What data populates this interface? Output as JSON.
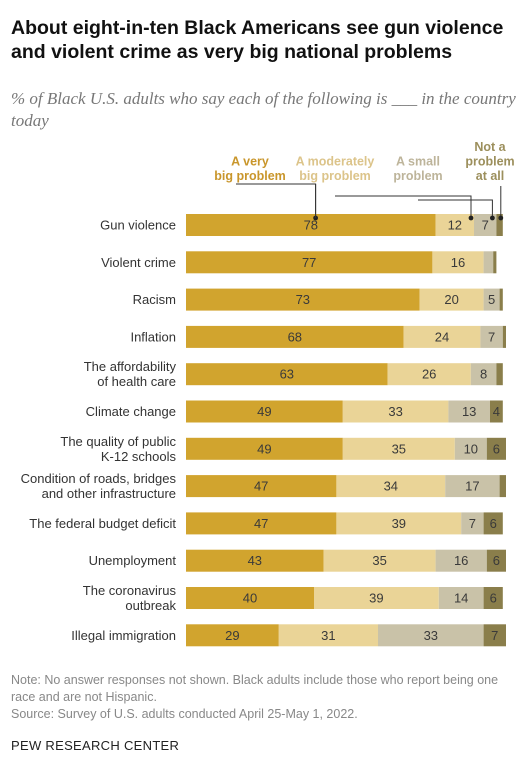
{
  "title": "About eight-in-ten Black Americans see gun violence and violent crime as very big national problems",
  "subtitle": "% of Black U.S. adults who say each of the following is ___ in the country today",
  "note": "Note: No answer responses not shown. Black adults include those who report being one race and are not Hispanic.",
  "source": "Source: Survey of U.S. adults conducted April 25-May 1, 2022.",
  "org": "PEW RESEARCH CENTER",
  "colors": {
    "very_big": "#d1a42e",
    "moderately_big": "#ead497",
    "small": "#c9c2a8",
    "not_a_problem": "#8a7e4b",
    "very_big_label": "#c9962b",
    "moderately_big_label": "#dcc48a",
    "small_label": "#bdb49a",
    "not_a_problem_label": "#9c8f5c"
  },
  "chart_data": {
    "type": "bar",
    "orientation": "horizontal",
    "stacked": true,
    "xlim": [
      0,
      100
    ],
    "categories": [
      [
        "Gun violence"
      ],
      [
        "Violent crime"
      ],
      [
        "Racism"
      ],
      [
        "Inflation"
      ],
      [
        "The affordability",
        "of health care"
      ],
      [
        "Climate change"
      ],
      [
        "The quality of public",
        "K-12 schools"
      ],
      [
        "Condition of roads, bridges",
        "and other infrastructure"
      ],
      [
        "The federal budget deficit"
      ],
      [
        "Unemployment"
      ],
      [
        "The coronavirus",
        "outbreak"
      ],
      [
        "Illegal immigration"
      ]
    ],
    "series": [
      {
        "name": [
          "A very",
          "big problem"
        ],
        "key": "very_big",
        "values": [
          78,
          77,
          73,
          68,
          63,
          49,
          49,
          47,
          47,
          43,
          40,
          29
        ]
      },
      {
        "name": [
          "A moderately",
          "big problem"
        ],
        "key": "moderately_big",
        "values": [
          12,
          16,
          20,
          24,
          26,
          33,
          35,
          34,
          39,
          35,
          39,
          31
        ]
      },
      {
        "name": [
          "A small",
          "problem"
        ],
        "key": "small",
        "values": [
          7,
          3,
          5,
          7,
          8,
          13,
          10,
          17,
          7,
          16,
          14,
          33
        ]
      },
      {
        "name": [
          "Not a",
          "problem",
          "at all"
        ],
        "key": "not_a_problem",
        "values": [
          2,
          1,
          1,
          1,
          2,
          4,
          6,
          2,
          6,
          6,
          6,
          7
        ]
      }
    ],
    "data_labels": [
      [
        "78",
        "12",
        "7",
        ""
      ],
      [
        "77",
        "16",
        "",
        ""
      ],
      [
        "73",
        "20",
        "5",
        ""
      ],
      [
        "68",
        "24",
        "7",
        ""
      ],
      [
        "63",
        "26",
        "8",
        ""
      ],
      [
        "49",
        "33",
        "13",
        "4"
      ],
      [
        "49",
        "35",
        "10",
        "6"
      ],
      [
        "47",
        "34",
        "17",
        ""
      ],
      [
        "47",
        "39",
        "7",
        "6"
      ],
      [
        "43",
        "35",
        "16",
        "6"
      ],
      [
        "40",
        "39",
        "14",
        "6"
      ],
      [
        "29",
        "31",
        "33",
        "7"
      ]
    ],
    "legend_position": "top"
  }
}
